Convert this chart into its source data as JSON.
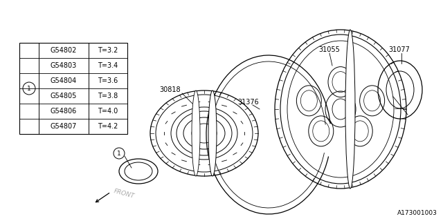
{
  "bg_color": "#ffffff",
  "table_data": [
    [
      "G54802",
      "T=3.2"
    ],
    [
      "G54803",
      "T=3.4"
    ],
    [
      "G54804",
      "T=3.6"
    ],
    [
      "G54805",
      "T=3.8"
    ],
    [
      "G54806",
      "T=4.0"
    ],
    [
      "G54807",
      "T=4.2"
    ]
  ],
  "ref_number": "A173001003",
  "line_color": "#000000",
  "font_size_small": 7,
  "font_size_table": 7
}
